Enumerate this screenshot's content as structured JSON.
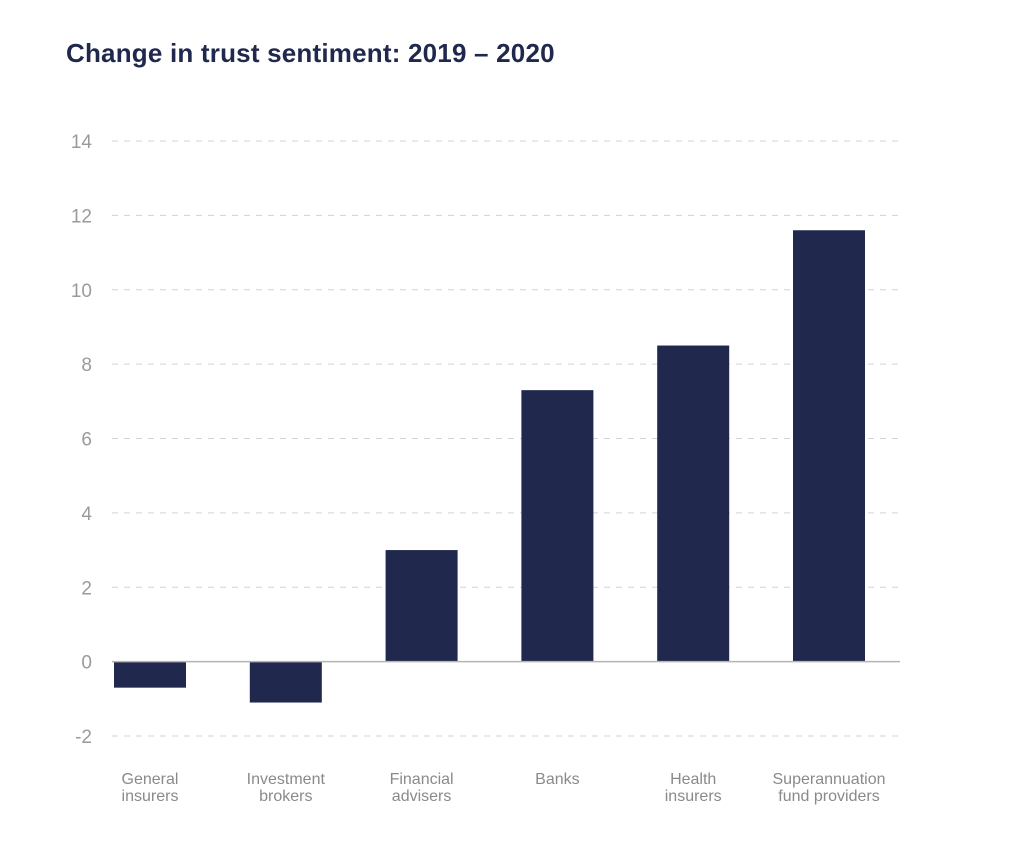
{
  "colors": {
    "bar": "#20284d",
    "title": "#20284d",
    "grid": "#d3d3d3",
    "axis": "#b5b5b5",
    "tick": "#9a9a9a"
  },
  "chart_data": {
    "type": "bar",
    "title": "Change in trust sentiment: 2019 – 2020",
    "xlabel": "",
    "ylabel": "",
    "ylim": [
      -2,
      14
    ],
    "yticks": [
      -2,
      0,
      2,
      4,
      6,
      8,
      10,
      12,
      14
    ],
    "grid": true,
    "legend": "none",
    "categories": [
      [
        "General",
        "insurers"
      ],
      [
        "Investment",
        "brokers"
      ],
      [
        "Financial",
        "advisers"
      ],
      [
        "Banks"
      ],
      [
        "Health",
        "insurers"
      ],
      [
        "Superannuation",
        "fund providers"
      ]
    ],
    "values": [
      -0.7,
      -1.1,
      3.0,
      7.3,
      8.5,
      11.6
    ]
  }
}
